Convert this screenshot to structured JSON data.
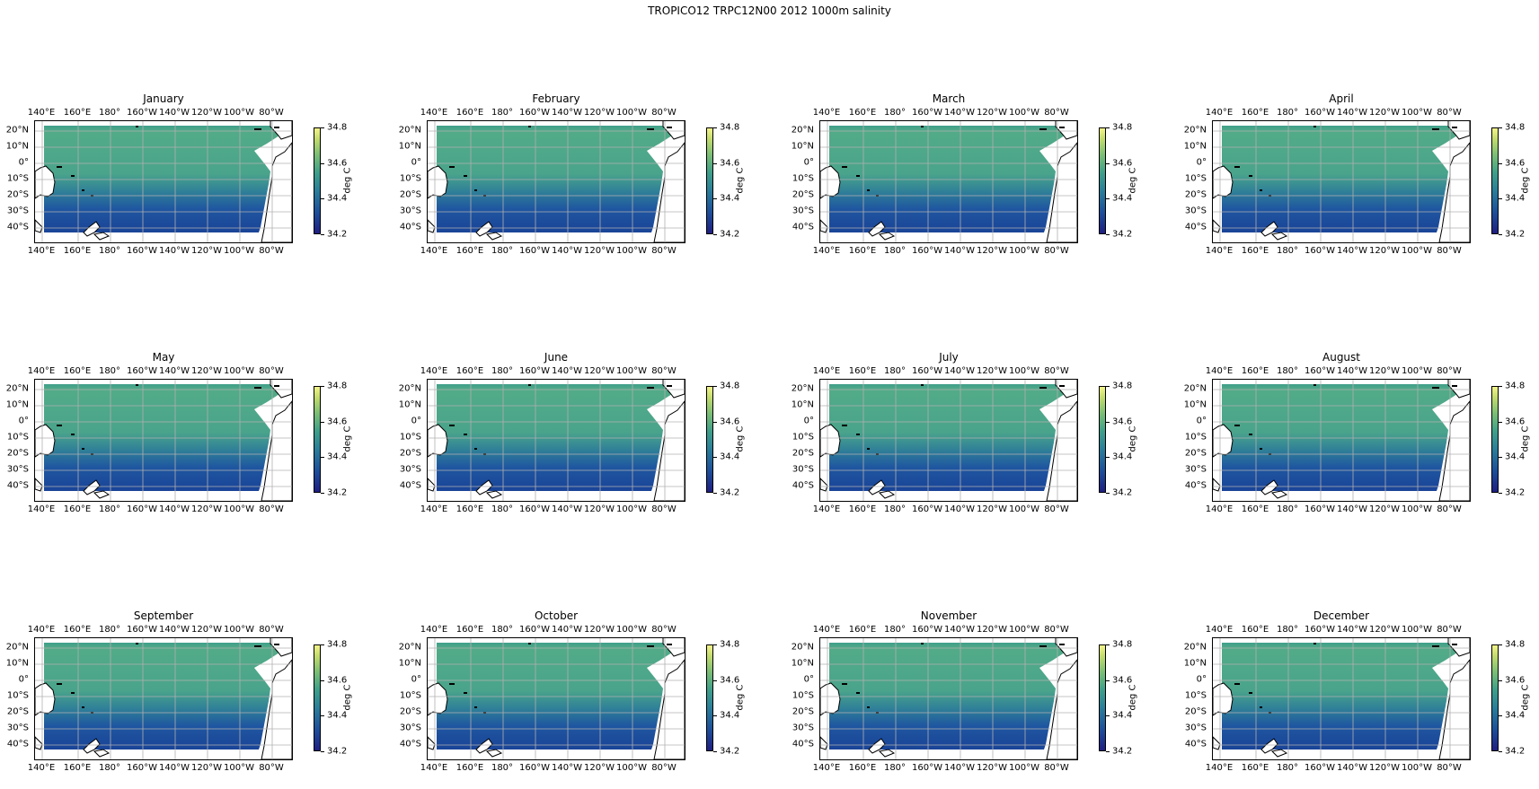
{
  "suptitle": "TROPICO12 TRPC12N00 2012 1000m salinity",
  "panels": [
    {
      "title": "January"
    },
    {
      "title": "February"
    },
    {
      "title": "March"
    },
    {
      "title": "April"
    },
    {
      "title": "May"
    },
    {
      "title": "June"
    },
    {
      "title": "July"
    },
    {
      "title": "August"
    },
    {
      "title": "September"
    },
    {
      "title": "October"
    },
    {
      "title": "November"
    },
    {
      "title": "December"
    }
  ],
  "lon_ticks": [
    "140°E",
    "160°E",
    "180°",
    "160°W",
    "140°W",
    "120°W",
    "100°W",
    "80°W"
  ],
  "lat_ticks": [
    "20°N",
    "10°N",
    "0°",
    "10°S",
    "20°S",
    "30°S",
    "40°S"
  ],
  "colorbar": {
    "ticks": [
      "34.8",
      "34.6",
      "34.4",
      "34.2"
    ],
    "unit": "deg C",
    "range": [
      34.2,
      34.8
    ]
  },
  "colors": {
    "ocean_north": "#4ea88a",
    "ocean_south": "#1e4c9a",
    "land": "#ffffff",
    "coastline": "#000000",
    "grid": "#b0b0b0"
  }
}
